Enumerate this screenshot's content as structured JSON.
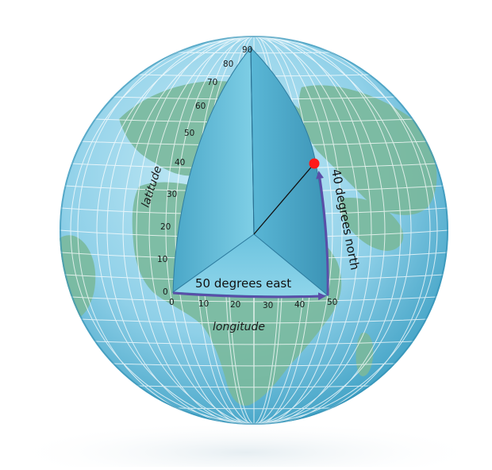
{
  "diagram": {
    "latitude_ticks": [
      "0",
      "10",
      "20",
      "30",
      "40",
      "50",
      "60",
      "70",
      "80",
      "90"
    ],
    "longitude_ticks": [
      "0",
      "10",
      "20",
      "30",
      "40",
      "50"
    ],
    "labels": {
      "latitude_axis": "latitude",
      "longitude_axis": "longitude",
      "east_arrow": "50 degrees east",
      "north_arrow": "40 degrees north"
    },
    "point": {
      "latitude": 40,
      "longitude": 50
    },
    "colors": {
      "ocean_light": "#bfe6f3",
      "ocean_dark": "#3c9fc3",
      "land": "#7ab99c",
      "wedge_light": "#7fcfe6",
      "wedge_dark": "#3c94b6",
      "arrow": "#5a4ea8",
      "point": "#ff1a1a",
      "graticule": "#ffffff"
    }
  }
}
